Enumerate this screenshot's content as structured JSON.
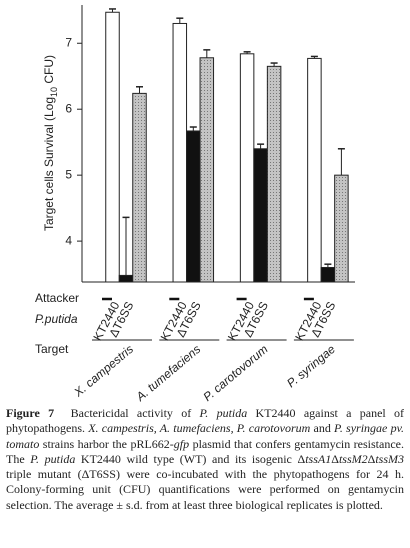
{
  "chart_data": {
    "type": "bar",
    "y_label": [
      "Target cells Survival (Log",
      "10",
      " CFU)"
    ],
    "categories": [
      "X. campestris",
      "A. tumefaciens",
      "P. carotovorum",
      "P. syringae"
    ],
    "series": [
      {
        "color": "#ffffff",
        "values": [
          7.47,
          7.3,
          6.84,
          6.77
        ],
        "errors": [
          0.05,
          0.08,
          0.03,
          0.03
        ]
      },
      {
        "color": "#111111",
        "values": [
          3.48,
          5.67,
          5.4,
          3.6
        ],
        "errors": [
          0.88,
          0.06,
          0.07,
          0.05
        ]
      },
      {
        "color": "#c4c4c4",
        "values": [
          6.24,
          6.78,
          6.65,
          5.0
        ],
        "errors": [
          0.1,
          0.12,
          0.05,
          0.4
        ]
      }
    ],
    "ylim": [
      3.38,
      7.58
    ],
    "yticks": [
      4,
      5,
      6,
      7
    ],
    "attacker_title": "Attacker",
    "attacker_species": "P.putida",
    "attacker_labels": [
      "KT2440",
      "ΔT6SS"
    ],
    "target_title": "Target"
  },
  "caption": {
    "parts": [
      "Figure 7",
      "Bactericidal activity of ",
      "P. putida",
      " KT2440 against a panel of phytopathogens. ",
      "X. campestris, A. tumefaciens, P. carotovorum",
      " and ",
      "P. syringae pv. tomato",
      " strains harbor the pRL662-",
      "gfp",
      " plasmid that confers gentamycin resistance. The ",
      "P. putida",
      " KT2440 wild type (WT) and its isogenic Δ",
      "tssA1",
      "Δ",
      "tssM2",
      "Δ",
      "tssM3",
      " triple mutant (ΔT6SS) were co-incubated with the phytopathogens for 24 h. Colony-forming unit (CFU) quantifications were performed on gentamycin selection. The average ± s.d. from at least three biological replicates is plotted."
    ]
  }
}
